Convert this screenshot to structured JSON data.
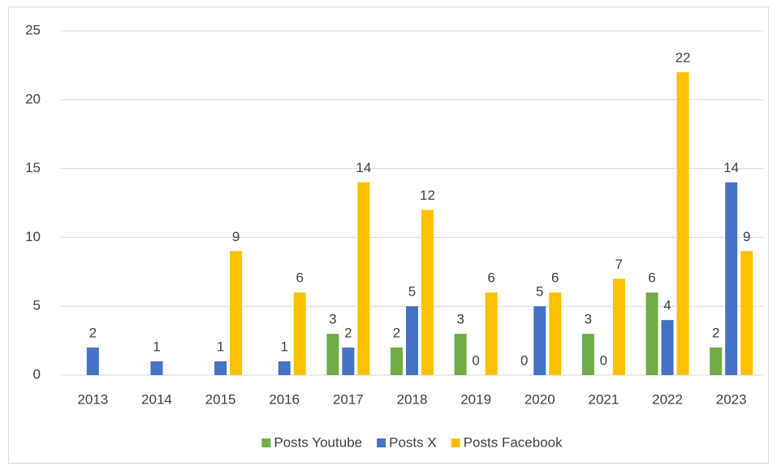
{
  "chart_data": {
    "type": "bar",
    "categories": [
      "2013",
      "2014",
      "2015",
      "2016",
      "2017",
      "2018",
      "2019",
      "2020",
      "2021",
      "2022",
      "2023"
    ],
    "series": [
      {
        "name": "Posts Youtube",
        "color": "#70ad47",
        "values": [
          null,
          null,
          null,
          null,
          3,
          2,
          3,
          0,
          3,
          6,
          2
        ]
      },
      {
        "name": "Posts X",
        "color": "#4472c4",
        "values": [
          2,
          1,
          1,
          1,
          2,
          5,
          0,
          5,
          0,
          4,
          14
        ]
      },
      {
        "name": "Posts Facebook",
        "color": "#ffc000",
        "values": [
          null,
          null,
          9,
          6,
          14,
          12,
          6,
          6,
          7,
          22,
          9
        ]
      }
    ],
    "ylim": [
      0,
      25
    ],
    "yticks": [
      0,
      5,
      10,
      15,
      20,
      25
    ],
    "grid": true,
    "legend": "bottom"
  }
}
